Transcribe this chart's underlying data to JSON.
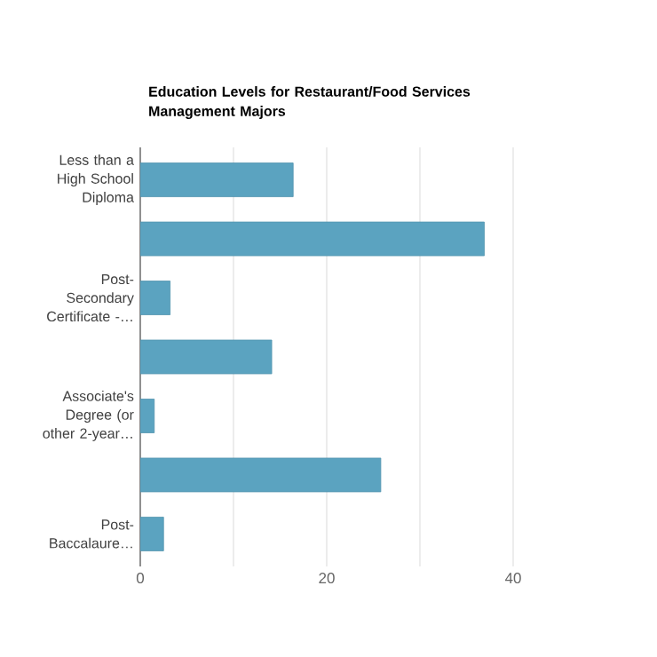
{
  "chart_data": {
    "type": "bar",
    "orientation": "horizontal",
    "title": "Education Levels for Restaurant/Food Services Management Majors",
    "categories": [
      "Less than a High School Diploma",
      null,
      "Post-Secondary Certificate -…",
      null,
      "Associate's Degree (or other 2-year…",
      null,
      "Post-Baccalaure…"
    ],
    "values": [
      16.4,
      36.9,
      3.2,
      14.1,
      1.5,
      25.8,
      2.5
    ],
    "color": "#5ba3c0",
    "xlim": [
      0,
      40
    ],
    "xticks": [
      0,
      {
        "value": 10,
        "label": null
      },
      20,
      {
        "value": 30,
        "label": null
      },
      40
    ],
    "grid": "x"
  }
}
